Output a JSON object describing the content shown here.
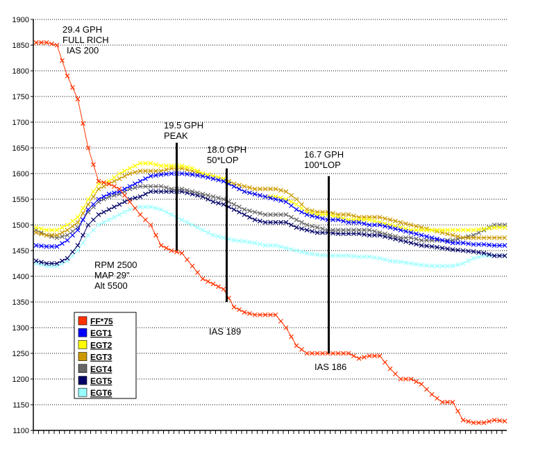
{
  "chart_data": {
    "type": "line",
    "title": "",
    "xlabel": "",
    "ylabel": "",
    "ylim": [
      1100,
      1900
    ],
    "yticks": [
      1100,
      1150,
      1200,
      1250,
      1300,
      1350,
      1400,
      1450,
      1500,
      1550,
      1600,
      1650,
      1700,
      1750,
      1800,
      1850,
      1900
    ],
    "grid": "horizontal dotted",
    "legend_placement": "bottom-left",
    "marker": "x",
    "series": [
      {
        "name": "FF*75",
        "color": "#ff3300",
        "values": [
          1855,
          1855,
          1850,
          1790,
          1745,
          1650,
          1585,
          1580,
          1570,
          1545,
          1520,
          1500,
          1460,
          1450,
          1445,
          1420,
          1395,
          1385,
          1375,
          1340,
          1330,
          1325,
          1325,
          1325,
          1300,
          1265,
          1250,
          1250,
          1250,
          1250,
          1250,
          1240,
          1245,
          1245,
          1220,
          1200,
          1200,
          1190,
          1170,
          1155,
          1155,
          1120,
          1115,
          1115,
          1120,
          1118
        ]
      },
      {
        "name": "EGT1",
        "color": "#0000ff",
        "values": [
          1460,
          1458,
          1458,
          1470,
          1490,
          1530,
          1550,
          1560,
          1565,
          1575,
          1585,
          1595,
          1598,
          1600,
          1600,
          1598,
          1595,
          1590,
          1585,
          1575,
          1565,
          1560,
          1555,
          1550,
          1545,
          1530,
          1520,
          1515,
          1510,
          1510,
          1505,
          1505,
          1500,
          1500,
          1495,
          1490,
          1485,
          1480,
          1475,
          1470,
          1465,
          1465,
          1462,
          1462,
          1460,
          1460
        ]
      },
      {
        "name": "EGT2",
        "color": "#ffff00",
        "values": [
          1495,
          1490,
          1490,
          1500,
          1515,
          1550,
          1580,
          1585,
          1600,
          1610,
          1620,
          1620,
          1615,
          1615,
          1615,
          1610,
          1600,
          1595,
          1590,
          1575,
          1565,
          1560,
          1555,
          1555,
          1550,
          1540,
          1525,
          1520,
          1520,
          1515,
          1510,
          1510,
          1510,
          1505,
          1500,
          1495,
          1490,
          1490,
          1490,
          1490,
          1490,
          1490,
          1490,
          1492,
          1495,
          1495
        ]
      },
      {
        "name": "EGT3",
        "color": "#cc9900",
        "values": [
          1485,
          1480,
          1480,
          1490,
          1505,
          1540,
          1570,
          1580,
          1590,
          1600,
          1605,
          1605,
          1605,
          1610,
          1610,
          1605,
          1600,
          1595,
          1590,
          1580,
          1575,
          1570,
          1570,
          1570,
          1565,
          1550,
          1530,
          1525,
          1525,
          1520,
          1520,
          1515,
          1515,
          1515,
          1510,
          1505,
          1500,
          1495,
          1490,
          1485,
          1480,
          1475,
          1475,
          1475,
          1475,
          1475
        ]
      },
      {
        "name": "EGT4",
        "color": "#666666",
        "values": [
          1490,
          1480,
          1475,
          1480,
          1495,
          1525,
          1545,
          1555,
          1560,
          1570,
          1575,
          1575,
          1575,
          1570,
          1570,
          1565,
          1560,
          1555,
          1550,
          1540,
          1530,
          1525,
          1520,
          1520,
          1520,
          1510,
          1500,
          1495,
          1490,
          1490,
          1490,
          1490,
          1490,
          1485,
          1480,
          1475,
          1475,
          1470,
          1470,
          1470,
          1470,
          1475,
          1480,
          1490,
          1500,
          1500
        ]
      },
      {
        "name": "EGT5",
        "color": "#000066",
        "values": [
          1430,
          1425,
          1425,
          1435,
          1460,
          1500,
          1520,
          1530,
          1540,
          1550,
          1555,
          1565,
          1565,
          1565,
          1565,
          1560,
          1555,
          1545,
          1540,
          1530,
          1520,
          1510,
          1505,
          1505,
          1505,
          1495,
          1490,
          1485,
          1485,
          1483,
          1483,
          1483,
          1480,
          1480,
          1475,
          1470,
          1465,
          1460,
          1458,
          1455,
          1452,
          1450,
          1448,
          1445,
          1440,
          1440
        ]
      },
      {
        "name": "EGT6",
        "color": "#99ffff",
        "values": [
          1425,
          1420,
          1420,
          1430,
          1450,
          1480,
          1500,
          1510,
          1520,
          1530,
          1535,
          1535,
          1530,
          1520,
          1510,
          1500,
          1490,
          1480,
          1475,
          1470,
          1468,
          1465,
          1460,
          1460,
          1455,
          1450,
          1445,
          1442,
          1440,
          1440,
          1440,
          1438,
          1438,
          1435,
          1430,
          1428,
          1425,
          1422,
          1420,
          1420,
          1420,
          1425,
          1435,
          1440,
          1440,
          1440
        ]
      }
    ],
    "annotations": [
      {
        "lines": [
          "29.4 GPH",
          "FULL RICH",
          "IAS 200"
        ]
      },
      {
        "lines": [
          "19.5 GPH",
          "PEAK"
        ]
      },
      {
        "lines": [
          "18.0 GPH",
          "50*LOP"
        ]
      },
      {
        "lines": [
          "16.7 GPH",
          "100*LOP"
        ]
      },
      {
        "lines": [
          "RPM 2500",
          "MAP 29\"",
          "Alt 5500"
        ]
      },
      {
        "lines": [
          "IAS 189"
        ]
      },
      {
        "lines": [
          "IAS 186"
        ]
      }
    ],
    "markers_vertical": [
      {
        "index": 13.5,
        "from": 1660,
        "to": 1450
      },
      {
        "index": 18.3,
        "from": 1610,
        "to": 1350
      },
      {
        "index": 28.1,
        "from": 1595,
        "to": 1250
      }
    ]
  }
}
